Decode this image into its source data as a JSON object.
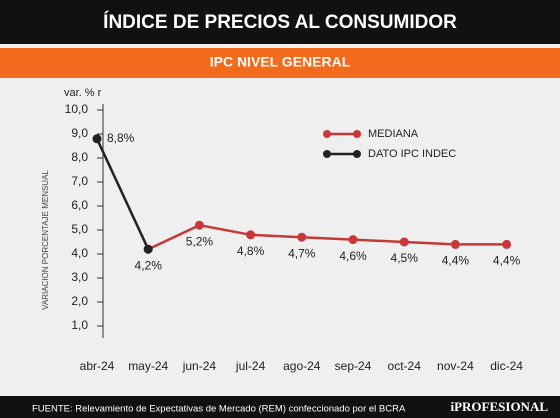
{
  "chart_data": {
    "type": "line",
    "title": "ÍNDICE DE PRECIOS AL CONSUMIDOR",
    "subtitle": "IPC NIVEL GENERAL",
    "y_unit": "var. % r",
    "y_label": "VARIACION PORCENTAJE MENSUAL",
    "source": "FUENTE:  Relevamiento de Expectativas de Mercado (REM) confeccionado por el BCRA",
    "brand": "iPROFESIONAL",
    "categories": [
      "abr-24",
      "may-24",
      "jun-24",
      "jul-24",
      "ago-24",
      "sep-24",
      "oct-24",
      "nov-24",
      "dic-24"
    ],
    "series": [
      {
        "name": "MEDIANA",
        "color": "#c8373a",
        "values": [
          null,
          4.2,
          5.2,
          4.8,
          4.7,
          4.6,
          4.5,
          4.4,
          4.4
        ],
        "value_labels": [
          null,
          null,
          "5,2%",
          "4,8%",
          "4,7%",
          "4,6%",
          "4,5%",
          "4,4%",
          "4,4%"
        ]
      },
      {
        "name": "DATO IPC INDEC",
        "color": "#222222",
        "values": [
          8.8,
          4.2,
          null,
          null,
          null,
          null,
          null,
          null,
          null
        ],
        "value_labels": [
          "8,8%",
          "4,2%",
          null,
          null,
          null,
          null,
          null,
          null,
          null
        ]
      }
    ],
    "ylim": [
      0,
      10
    ],
    "yticks": [
      {
        "value": 1,
        "label": "1,0"
      },
      {
        "value": 2,
        "label": "2,0"
      },
      {
        "value": 3,
        "label": "3,0"
      },
      {
        "value": 4,
        "label": "4,0"
      },
      {
        "value": 5,
        "label": "5,0"
      },
      {
        "value": 6,
        "label": "6,0"
      },
      {
        "value": 7,
        "label": "7,0"
      },
      {
        "value": 8,
        "label": "8,0"
      },
      {
        "value": 9,
        "label": "9,0"
      },
      {
        "value": 10,
        "label": "10,0"
      }
    ],
    "legend": "upper right"
  }
}
